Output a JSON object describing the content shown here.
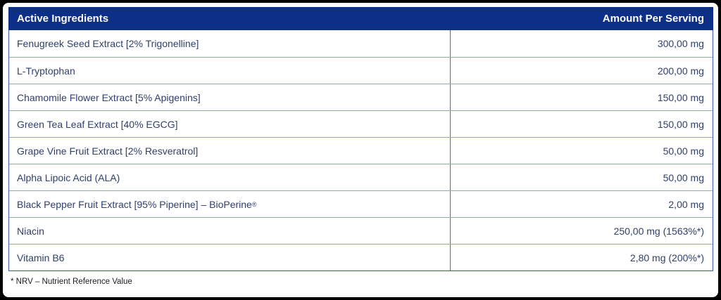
{
  "table": {
    "columns": {
      "ingredients_label": "Active Ingredients",
      "amount_label": "Amount Per Serving"
    },
    "rows": [
      {
        "ingredient": "Fenugreek Seed Extract [2% Trigonelline]",
        "amount": "300,00 mg"
      },
      {
        "ingredient": "L-Tryptophan",
        "amount": "200,00 mg"
      },
      {
        "ingredient": "Chamomile Flower Extract [5% Apigenins]",
        "amount": "150,00 mg"
      },
      {
        "ingredient": "Green Tea Leaf Extract [40% EGCG]",
        "amount": "150,00 mg"
      },
      {
        "ingredient": "Grape Vine Fruit Extract [2% Resveratrol]",
        "amount": "50,00 mg"
      },
      {
        "ingredient": "Alpha Lipoic Acid (ALA)",
        "amount": "50,00 mg"
      },
      {
        "ingredient": "Black Pepper Fruit Extract [95% Piperine] – BioPerine",
        "sup": "®",
        "amount": "2,00 mg"
      },
      {
        "ingredient": "Niacin",
        "amount": "250,00 mg (1563%*)"
      },
      {
        "ingredient": "Vitamin B6",
        "amount": "2,80 mg (200%*)"
      }
    ]
  },
  "footnote": "* NRV – Nutrient Reference Value",
  "colors": {
    "header_bg": "#0d2f87",
    "header_text": "#ffffff",
    "row_text": "#31406b",
    "border_outer": "#3a5aa8",
    "border_row_separator": "#8ea6d2",
    "border_column_divider": "#4a6ab3",
    "frame": "#000000",
    "footnote_text": "#1c1c1c"
  }
}
